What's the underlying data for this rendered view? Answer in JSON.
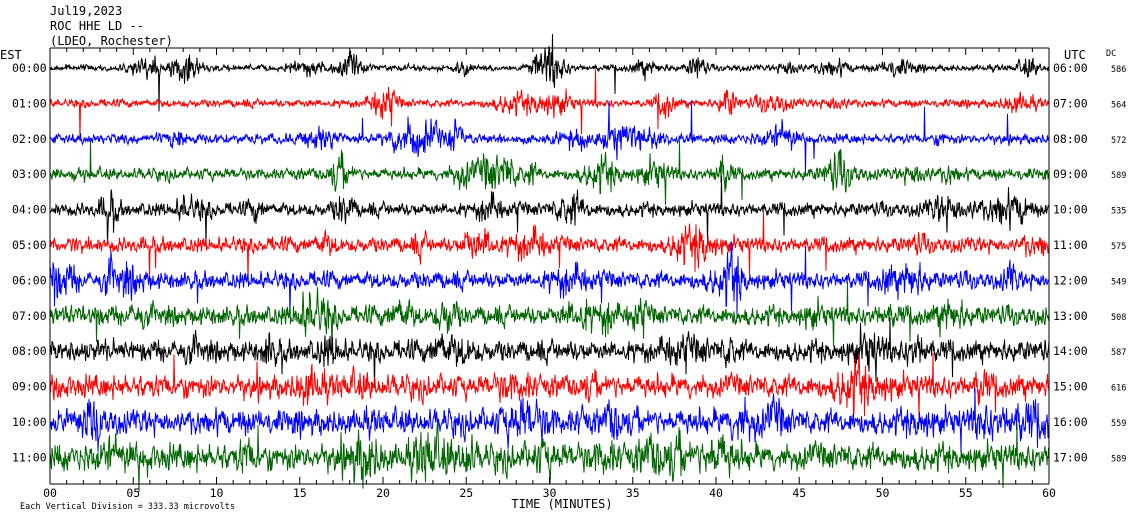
{
  "header": {
    "line1": "Jul19,2023",
    "line2": "ROC HHE LD --",
    "line3": "(LDEO, Rochester)"
  },
  "left_axis_title": "EST",
  "right_axis_title": "UTC",
  "dc_title": "DC",
  "footer": "Each Vertical Division =  333.33 microvolts",
  "chart_data": {
    "type": "line",
    "description_kind": "helicorder seismogram",
    "xlabel": "TIME (MINUTES)",
    "xlim": [
      0,
      60
    ],
    "x_ticks": [
      0,
      5,
      10,
      15,
      20,
      25,
      30,
      35,
      40,
      45,
      50,
      55,
      60
    ],
    "x_tick_labels": [
      "00",
      "05",
      "10",
      "15",
      "20",
      "25",
      "30",
      "35",
      "40",
      "45",
      "50",
      "55",
      "60"
    ],
    "trace_colors": [
      "#000000",
      "#ff0000",
      "#0000ff",
      "#006400"
    ],
    "traces": [
      {
        "est": "00:00",
        "utc": "06:00",
        "dc": "586"
      },
      {
        "est": "01:00",
        "utc": "07:00",
        "dc": "564"
      },
      {
        "est": "02:00",
        "utc": "08:00",
        "dc": "572"
      },
      {
        "est": "03:00",
        "utc": "09:00",
        "dc": "589"
      },
      {
        "est": "04:00",
        "utc": "10:00",
        "dc": "535"
      },
      {
        "est": "05:00",
        "utc": "11:00",
        "dc": "575"
      },
      {
        "est": "06:00",
        "utc": "12:00",
        "dc": "549"
      },
      {
        "est": "07:00",
        "utc": "13:00",
        "dc": "508"
      },
      {
        "est": "08:00",
        "utc": "14:00",
        "dc": "587"
      },
      {
        "est": "09:00",
        "utc": "15:00",
        "dc": "616"
      },
      {
        "est": "10:00",
        "utc": "16:00",
        "dc": "559"
      },
      {
        "est": "11:00",
        "utc": "17:00",
        "dc": "589"
      }
    ]
  }
}
